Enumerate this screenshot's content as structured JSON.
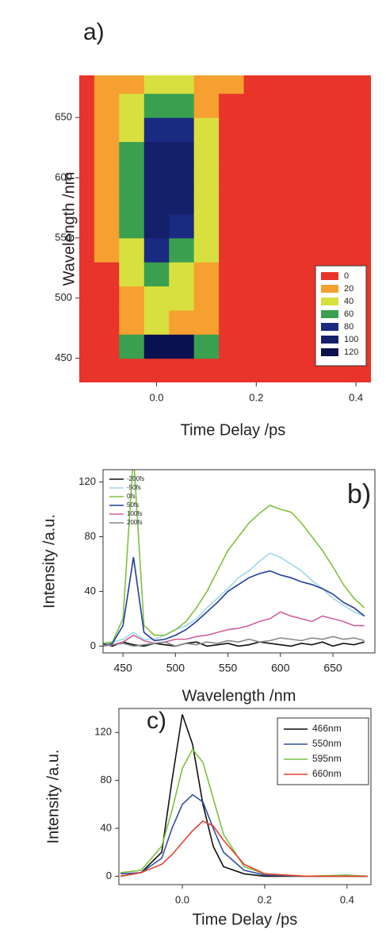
{
  "chart_data": [
    {
      "type": "heatmap",
      "panel_label": "a)",
      "xlabel": "Time Delay /ps",
      "ylabel": "Wavelength /nm",
      "xlim": [
        -0.155,
        0.43
      ],
      "ylim": [
        430,
        685
      ],
      "xticks": [
        {
          "value": 0,
          "label": "0.0"
        },
        {
          "value": 0.2,
          "label": "0.2"
        },
        {
          "value": 0.4,
          "label": "0.4"
        }
      ],
      "yticks": [
        450,
        500,
        550,
        600,
        650
      ],
      "x": [
        -0.15,
        -0.1,
        -0.05,
        0,
        0.05,
        0.1,
        0.15,
        0.2,
        0.25,
        0.3,
        0.35,
        0.4
      ],
      "y": [
        440,
        460,
        480,
        500,
        520,
        540,
        560,
        580,
        600,
        620,
        640,
        660,
        680
      ],
      "z": [
        [
          5,
          5,
          10,
          15,
          10,
          5,
          5,
          5,
          5,
          5,
          5,
          5
        ],
        [
          5,
          10,
          60,
          125,
          120,
          70,
          10,
          5,
          5,
          5,
          5,
          5
        ],
        [
          5,
          10,
          30,
          40,
          35,
          20,
          5,
          5,
          5,
          5,
          5,
          5
        ],
        [
          5,
          10,
          30,
          45,
          40,
          25,
          5,
          5,
          5,
          5,
          5,
          5
        ],
        [
          5,
          15,
          40,
          60,
          55,
          30,
          10,
          5,
          5,
          5,
          5,
          5
        ],
        [
          5,
          20,
          50,
          80,
          75,
          40,
          10,
          5,
          5,
          5,
          5,
          5
        ],
        [
          5,
          20,
          60,
          100,
          95,
          45,
          10,
          5,
          5,
          5,
          5,
          5
        ],
        [
          5,
          25,
          65,
          110,
          105,
          50,
          15,
          5,
          5,
          5,
          5,
          5
        ],
        [
          5,
          25,
          65,
          115,
          110,
          50,
          15,
          5,
          5,
          5,
          5,
          5
        ],
        [
          5,
          25,
          60,
          110,
          100,
          45,
          15,
          5,
          5,
          5,
          5,
          5
        ],
        [
          5,
          20,
          55,
          95,
          85,
          40,
          15,
          5,
          5,
          5,
          5,
          5
        ],
        [
          5,
          20,
          45,
          70,
          65,
          35,
          15,
          5,
          5,
          5,
          5,
          5
        ],
        [
          10,
          25,
          35,
          45,
          40,
          30,
          20,
          15,
          10,
          10,
          10,
          10
        ]
      ],
      "levels": [
        0,
        20,
        40,
        60,
        80,
        100,
        120
      ],
      "level_colors": [
        "#e8342a",
        "#f5a030",
        "#d8e040",
        "#3aa050",
        "#1a2a80",
        "#15206a",
        "#0a1050"
      ]
    },
    {
      "type": "line",
      "panel_label": "b)",
      "xlabel": "Wavelength /nm",
      "ylabel": "Intensity /a.u.",
      "xlim": [
        431,
        690
      ],
      "ylim": [
        -5,
        129
      ],
      "frame": true,
      "xticks": [
        450,
        500,
        550,
        600,
        650
      ],
      "yticks": [
        0,
        40,
        80,
        120
      ],
      "x": [
        430,
        440,
        450,
        460,
        470,
        480,
        490,
        500,
        510,
        520,
        530,
        540,
        550,
        560,
        570,
        580,
        590,
        600,
        610,
        620,
        630,
        640,
        650,
        660,
        670,
        680
      ],
      "series": [
        {
          "name": "-200fs",
          "color": "#111111",
          "values": [
            2,
            0,
            3,
            1,
            0,
            2,
            1,
            0,
            2,
            3,
            0,
            1,
            2,
            0,
            1,
            3,
            2,
            1,
            0,
            2,
            1,
            3,
            0,
            2,
            1,
            3
          ]
        },
        {
          "name": "-50fs",
          "color": "#9fd8ea",
          "values": [
            2,
            3,
            5,
            10,
            5,
            5,
            8,
            12,
            15,
            20,
            28,
            35,
            42,
            50,
            55,
            62,
            68,
            65,
            60,
            55,
            48,
            42,
            35,
            30,
            25,
            22
          ]
        },
        {
          "name": "0fs",
          "color": "#80c040",
          "values": [
            2,
            3,
            20,
            140,
            15,
            8,
            8,
            12,
            18,
            28,
            40,
            55,
            70,
            80,
            90,
            97,
            103,
            100,
            98,
            90,
            80,
            70,
            58,
            45,
            35,
            28
          ]
        },
        {
          "name": "50fs",
          "color": "#1f3e9a",
          "values": [
            0,
            2,
            15,
            65,
            10,
            4,
            5,
            8,
            12,
            18,
            25,
            32,
            40,
            45,
            50,
            53,
            55,
            52,
            50,
            47,
            45,
            42,
            38,
            32,
            28,
            22
          ]
        },
        {
          "name": "100fs",
          "color": "#d060a0",
          "values": [
            0,
            1,
            3,
            8,
            4,
            2,
            3,
            5,
            5,
            7,
            8,
            10,
            12,
            13,
            15,
            18,
            20,
            25,
            22,
            20,
            18,
            22,
            20,
            18,
            15,
            15
          ]
        },
        {
          "name": "200fs",
          "color": "#888888",
          "values": [
            0,
            1,
            2,
            0,
            1,
            2,
            3,
            0,
            2,
            1,
            3,
            2,
            4,
            3,
            5,
            3,
            4,
            6,
            5,
            4,
            6,
            5,
            7,
            5,
            6,
            4
          ]
        }
      ]
    },
    {
      "type": "line",
      "panel_label": "c)",
      "xlabel": "Time Delay /ps",
      "ylabel": "Intensity /a.u.",
      "xlim": [
        -0.154,
        0.458
      ],
      "ylim": [
        -7,
        140
      ],
      "frame": true,
      "legend_box": true,
      "xticks": [
        {
          "value": 0,
          "label": "0.0"
        },
        {
          "value": 0.2,
          "label": "0.2"
        },
        {
          "value": 0.4,
          "label": "0.4"
        }
      ],
      "yticks": [
        0,
        40,
        80,
        120
      ],
      "x": [
        -0.15,
        -0.1,
        -0.05,
        -0.025,
        0,
        0.025,
        0.05,
        0.075,
        0.1,
        0.15,
        0.2,
        0.3,
        0.4,
        0.45
      ],
      "series": [
        {
          "name": "466nm",
          "color": "#111111",
          "values": [
            0,
            3,
            20,
            80,
            135,
            110,
            60,
            25,
            8,
            2,
            0,
            0,
            0,
            0
          ]
        },
        {
          "name": "550nm",
          "color": "#3050a0",
          "values": [
            2,
            3,
            15,
            40,
            60,
            68,
            62,
            40,
            20,
            5,
            1,
            0,
            0,
            0
          ]
        },
        {
          "name": "595nm",
          "color": "#7cc040",
          "values": [
            3,
            5,
            25,
            55,
            90,
            106,
            95,
            65,
            35,
            8,
            2,
            0,
            1,
            0
          ]
        },
        {
          "name": "660nm",
          "color": "#e84030",
          "values": [
            0,
            3,
            10,
            18,
            28,
            38,
            46,
            42,
            30,
            10,
            2,
            0,
            0,
            0
          ]
        }
      ]
    }
  ]
}
